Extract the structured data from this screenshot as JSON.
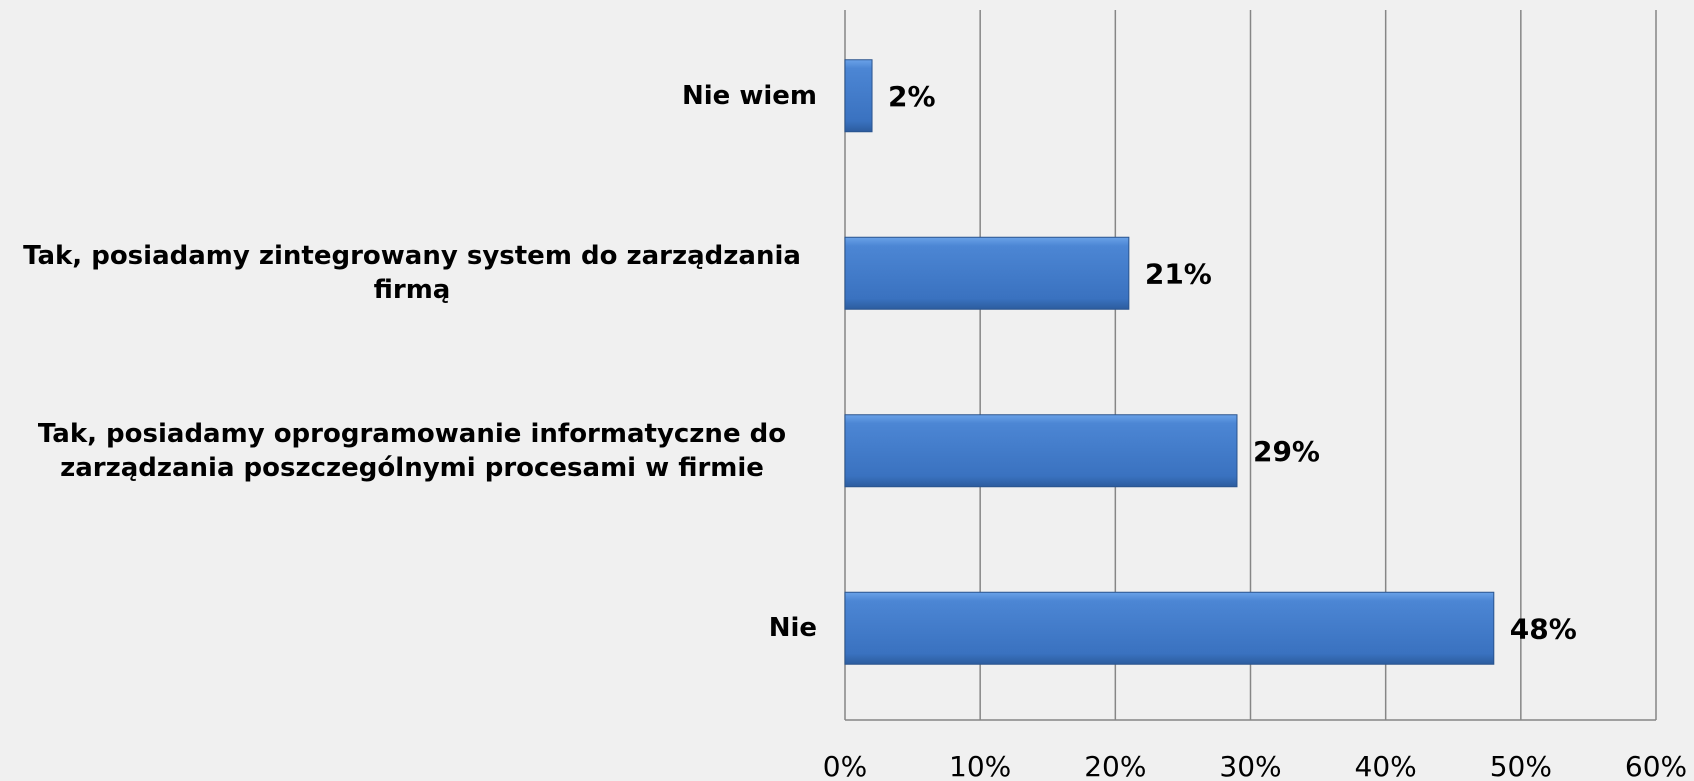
{
  "chart_data": {
    "type": "bar",
    "orientation": "horizontal",
    "categories": [
      "Nie wiem",
      "Tak, posiadamy zintegrowany system do zarządzania firmą",
      "Tak, posiadamy oprogramowanie informatyczne do zarządzania poszczególnymi procesami w firmie",
      "Nie"
    ],
    "values": [
      2,
      21,
      29,
      48
    ],
    "value_labels": [
      "2%",
      "21%",
      "29%",
      "48%"
    ],
    "color": "#3c78c8",
    "xlim": [
      0,
      60
    ],
    "xticks": [
      {
        "value": 0,
        "label": "0%"
      },
      {
        "value": 10,
        "label": "10%"
      },
      {
        "value": 20,
        "label": "20%"
      },
      {
        "value": 30,
        "label": "30%"
      },
      {
        "value": 40,
        "label": "40%"
      },
      {
        "value": 50,
        "label": "50%"
      },
      {
        "value": 60,
        "label": "60%"
      }
    ],
    "grid": true
  }
}
